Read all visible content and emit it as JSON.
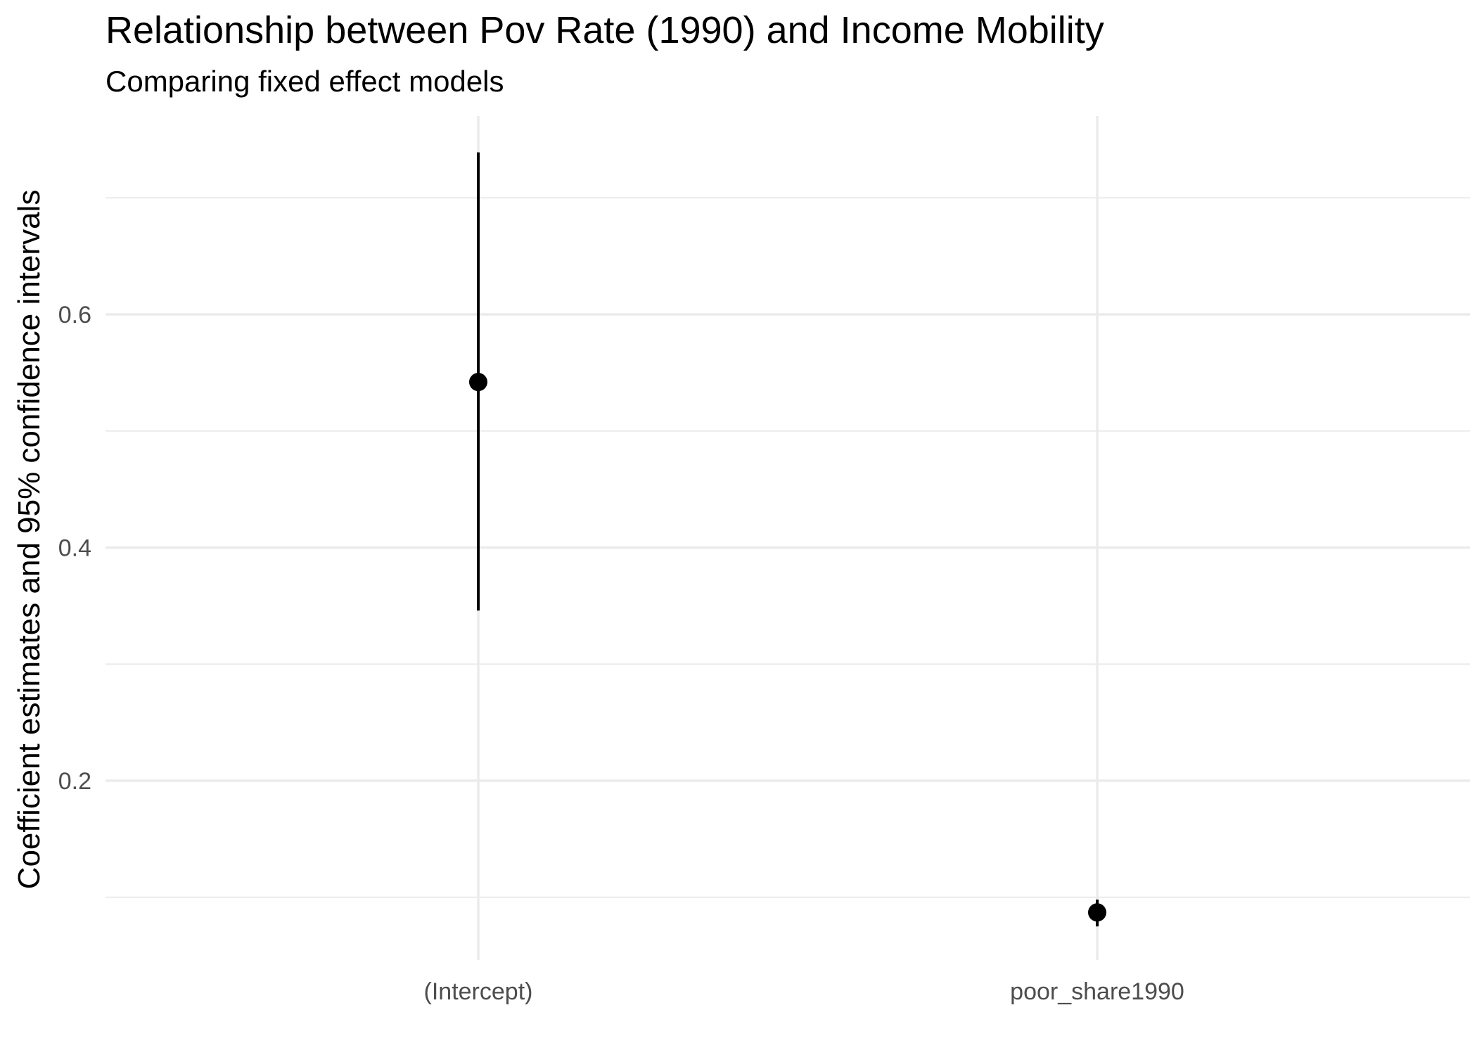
{
  "chart_data": {
    "type": "scatter",
    "title": "Relationship between Pov Rate (1990) and Income Mobility",
    "subtitle": "Comparing fixed effect models",
    "xlabel": "",
    "ylabel": "Coefficient estimates and 95% confidence intervals",
    "categories": [
      "(Intercept)",
      "poor_share1990"
    ],
    "estimates": [
      {
        "term": "(Intercept)",
        "estimate": 0.542,
        "conf_low": 0.346,
        "conf_high": 0.739
      },
      {
        "term": "poor_share1990",
        "estimate": 0.087,
        "conf_low": 0.075,
        "conf_high": 0.098
      }
    ],
    "y_ticks": [
      0.2,
      0.4,
      0.6
    ],
    "y_tick_labels": [
      "0.2",
      "0.4",
      "0.6"
    ],
    "ylim": [
      0.055,
      0.77
    ],
    "grid": true,
    "legend": "none",
    "colors": {
      "point": "#000000",
      "grid": "#ebebeb",
      "tick_label": "#4d4d4d"
    }
  }
}
